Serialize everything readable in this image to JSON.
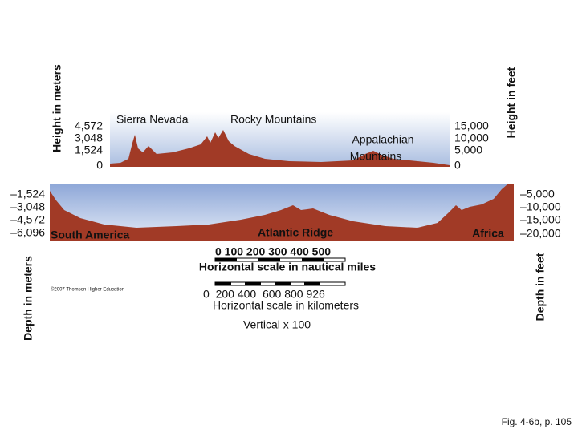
{
  "axis_titles": {
    "height_meters": "Height in meters",
    "height_feet": "Height in feet",
    "depth_meters": "Depth in meters",
    "depth_feet": "Depth in feet"
  },
  "height_meters_ticks": [
    "4,572",
    "3,048",
    "1,524",
    "0"
  ],
  "height_feet_ticks": [
    "15,000",
    "10,000",
    "5,000",
    "0"
  ],
  "depth_meters_ticks": [
    "–1,524",
    "–3,048",
    "–4,572",
    "–6,096"
  ],
  "depth_feet_ticks": [
    "–5,000",
    "–10,000",
    "–15,000",
    "–20,000"
  ],
  "features": {
    "sierra": "Sierra Nevada",
    "rocky": "Rocky Mountains",
    "appalachian_1": "Appalachian",
    "appalachian_2": "Mountains",
    "south_america": "South America",
    "atlantic": "Atlantic Ridge",
    "africa": "Africa"
  },
  "scales": {
    "nautical_ticks": "0 100 200 300 400 500",
    "nautical_label": "Horizontal scale in nautical miles",
    "km_ticks": "0  200 400  600 800 926",
    "km_label": "Horizontal scale in kilometers",
    "vertical": "Vertical x 100"
  },
  "copyright": "©2007 Thomson Higher Education",
  "caption": "Fig. 4-6b, p. 105"
}
